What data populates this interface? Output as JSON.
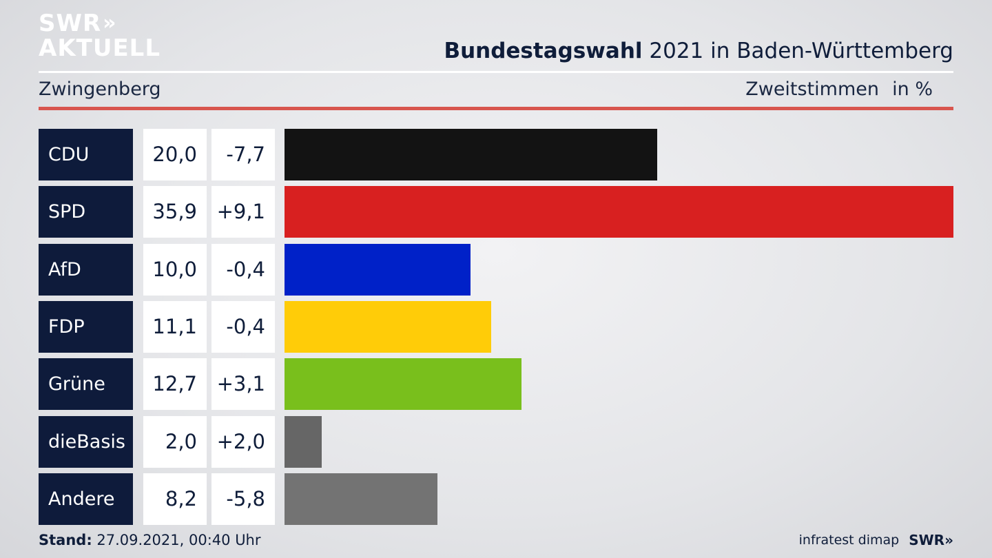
{
  "logo": {
    "line1": "SWR",
    "chevrons": "»",
    "line2": "AKTUELL"
  },
  "header": {
    "title_bold": "Bundestagswahl",
    "title_rest": "2021 in Baden-Württemberg",
    "subtitle": "Zwingenberg",
    "votes_label": "Zweitstimmen",
    "unit_label": "in %"
  },
  "chart_data": {
    "type": "bar",
    "orientation": "horizontal",
    "categories": [
      "CDU",
      "SPD",
      "AfD",
      "FDP",
      "Grüne",
      "dieBasis",
      "Andere"
    ],
    "values": [
      20.0,
      35.9,
      10.0,
      11.1,
      12.7,
      2.0,
      8.2
    ],
    "values_label": [
      "20,0",
      "35,9",
      "10,0",
      "11,1",
      "12,7",
      "2,0",
      "8,2"
    ],
    "changes": [
      "-7,7",
      "+9,1",
      "-0,4",
      "-0,4",
      "+3,1",
      "+2,0",
      "-5,8"
    ],
    "colors": [
      "#131313",
      "#d82020",
      "#0021c8",
      "#ffcc08",
      "#79bf1c",
      "#666666",
      "#737373"
    ],
    "xlim": [
      0,
      35.9
    ]
  },
  "footer": {
    "stand_label": "Stand:",
    "stand_value": "27.09.2021, 00:40 Uhr",
    "source": "infratest dimap",
    "brand": "SWR»"
  }
}
